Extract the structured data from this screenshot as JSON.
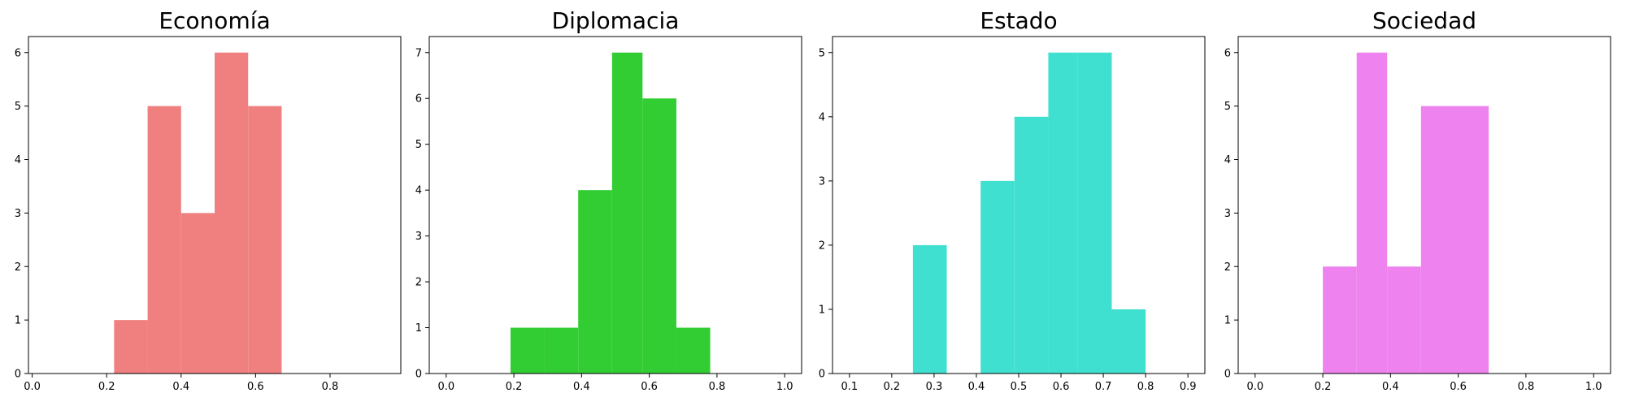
{
  "chart_data": [
    {
      "type": "bar",
      "title": "Economía",
      "color": "#f08080",
      "xlim": [
        -0.01,
        0.99
      ],
      "ylim": [
        0,
        6.3
      ],
      "xticks": [
        0.0,
        0.2,
        0.4,
        0.6,
        0.8
      ],
      "xtick_labels": [
        "0.0",
        "0.2",
        "0.4",
        "0.6",
        "0.8"
      ],
      "yticks": [
        0,
        1,
        2,
        3,
        4,
        5,
        6
      ],
      "ytick_labels": [
        "0",
        "1",
        "2",
        "3",
        "4",
        "5",
        "6"
      ],
      "bins": [
        {
          "x0": 0.22,
          "x1": 0.31,
          "count": 1
        },
        {
          "x0": 0.31,
          "x1": 0.4,
          "count": 5
        },
        {
          "x0": 0.4,
          "x1": 0.49,
          "count": 3
        },
        {
          "x0": 0.49,
          "x1": 0.58,
          "count": 6
        },
        {
          "x0": 0.58,
          "x1": 0.67,
          "count": 5
        }
      ]
    },
    {
      "type": "bar",
      "title": "Diplomacia",
      "color": "#32cd32",
      "xlim": [
        -0.05,
        1.05
      ],
      "ylim": [
        0,
        7.35
      ],
      "xticks": [
        0.0,
        0.2,
        0.4,
        0.6,
        0.8,
        1.0
      ],
      "xtick_labels": [
        "0.0",
        "0.2",
        "0.4",
        "0.6",
        "0.8",
        "1.0"
      ],
      "yticks": [
        0,
        1,
        2,
        3,
        4,
        5,
        6,
        7
      ],
      "ytick_labels": [
        "0",
        "1",
        "2",
        "3",
        "4",
        "5",
        "6",
        "7"
      ],
      "bins": [
        {
          "x0": 0.19,
          "x1": 0.29,
          "count": 1
        },
        {
          "x0": 0.29,
          "x1": 0.39,
          "count": 1
        },
        {
          "x0": 0.39,
          "x1": 0.49,
          "count": 4
        },
        {
          "x0": 0.49,
          "x1": 0.58,
          "count": 7
        },
        {
          "x0": 0.58,
          "x1": 0.68,
          "count": 6
        },
        {
          "x0": 0.68,
          "x1": 0.78,
          "count": 1
        }
      ]
    },
    {
      "type": "bar",
      "title": "Estado",
      "color": "#40e0d0",
      "xlim": [
        0.06,
        0.94
      ],
      "ylim": [
        0,
        5.25
      ],
      "xticks": [
        0.1,
        0.2,
        0.3,
        0.4,
        0.5,
        0.6,
        0.7,
        0.8,
        0.9
      ],
      "xtick_labels": [
        "0.1",
        "0.2",
        "0.3",
        "0.4",
        "0.5",
        "0.6",
        "0.7",
        "0.8",
        "0.9"
      ],
      "yticks": [
        0,
        1,
        2,
        3,
        4,
        5
      ],
      "ytick_labels": [
        "0",
        "1",
        "2",
        "3",
        "4",
        "5"
      ],
      "bins": [
        {
          "x0": 0.25,
          "x1": 0.33,
          "count": 2
        },
        {
          "x0": 0.41,
          "x1": 0.49,
          "count": 3
        },
        {
          "x0": 0.49,
          "x1": 0.57,
          "count": 4
        },
        {
          "x0": 0.57,
          "x1": 0.64,
          "count": 5
        },
        {
          "x0": 0.64,
          "x1": 0.72,
          "count": 5
        },
        {
          "x0": 0.72,
          "x1": 0.8,
          "count": 1
        }
      ]
    },
    {
      "type": "bar",
      "title": "Sociedad",
      "color": "#ee82ee",
      "xlim": [
        -0.05,
        1.05
      ],
      "ylim": [
        0,
        6.3
      ],
      "xticks": [
        0.0,
        0.2,
        0.4,
        0.6,
        0.8,
        1.0
      ],
      "xtick_labels": [
        "0.0",
        "0.2",
        "0.4",
        "0.6",
        "0.8",
        "1.0"
      ],
      "yticks": [
        0,
        1,
        2,
        3,
        4,
        5,
        6
      ],
      "ytick_labels": [
        "0",
        "1",
        "2",
        "3",
        "4",
        "5",
        "6"
      ],
      "bins": [
        {
          "x0": 0.2,
          "x1": 0.3,
          "count": 2
        },
        {
          "x0": 0.3,
          "x1": 0.39,
          "count": 6
        },
        {
          "x0": 0.39,
          "x1": 0.49,
          "count": 2
        },
        {
          "x0": 0.49,
          "x1": 0.59,
          "count": 5
        },
        {
          "x0": 0.59,
          "x1": 0.69,
          "count": 5
        }
      ]
    }
  ]
}
